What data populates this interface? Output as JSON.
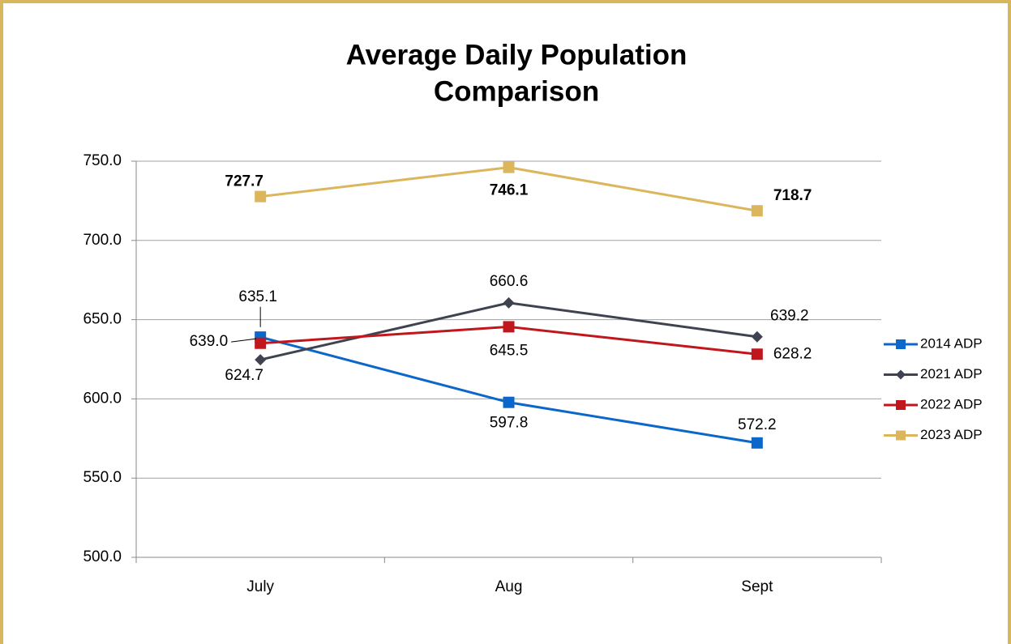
{
  "chart_data": {
    "type": "line",
    "title": [
      "Average Daily Population",
      "Comparison"
    ],
    "categories": [
      "July",
      "Aug",
      "Sept"
    ],
    "series": [
      {
        "name": "2014 ADP",
        "color": "#0b67c9",
        "marker": "square",
        "values": [
          639.0,
          597.8,
          572.2
        ],
        "value_labels": [
          "639.0",
          "597.8",
          "572.2"
        ]
      },
      {
        "name": "2021 ADP",
        "color": "#3f4350",
        "marker": "diamond",
        "values": [
          624.7,
          660.6,
          639.2
        ],
        "value_labels": [
          "624.7",
          "660.6",
          "639.2"
        ]
      },
      {
        "name": "2022 ADP",
        "color": "#c0161c",
        "marker": "square",
        "values": [
          635.1,
          645.5,
          628.2
        ],
        "value_labels": [
          "635.1",
          "645.5",
          "628.2"
        ]
      },
      {
        "name": "2023 ADP",
        "color": "#dbb65c",
        "marker": "square",
        "values": [
          727.7,
          746.1,
          718.7
        ],
        "value_labels": [
          "727.7",
          "746.1",
          "718.7"
        ]
      }
    ],
    "ylim": [
      500,
      750
    ],
    "yticks": [
      {
        "value": 500,
        "label": "500.0"
      },
      {
        "value": 550,
        "label": "550.0"
      },
      {
        "value": 600,
        "label": "600.0"
      },
      {
        "value": 650,
        "label": "650.0"
      },
      {
        "value": 700,
        "label": "700.0"
      },
      {
        "value": 750,
        "label": "750.0"
      }
    ],
    "grid": true,
    "legend": "right"
  }
}
